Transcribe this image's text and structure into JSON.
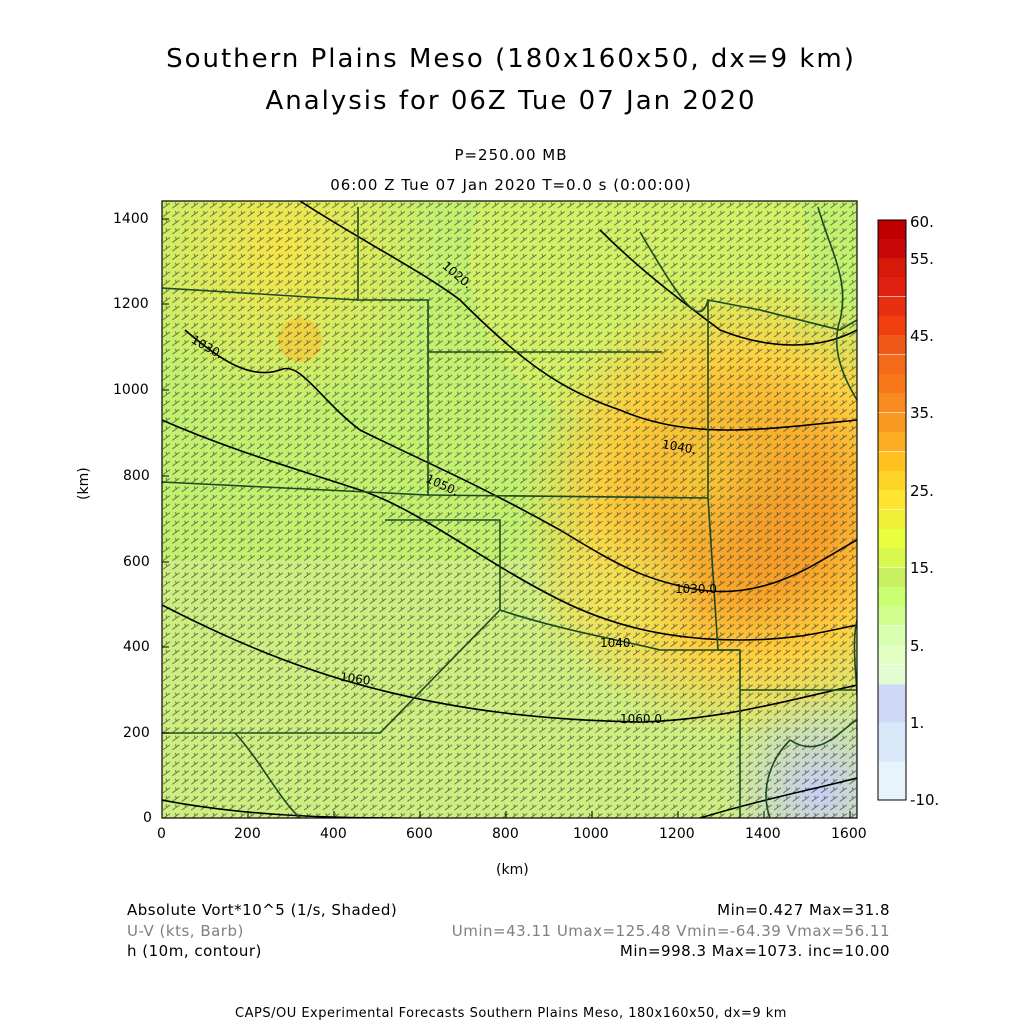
{
  "title": {
    "line1": "Southern Plains Meso (180x160x50, dx=9 km)",
    "line2": "Analysis for 06Z Tue 07 Jan 2020"
  },
  "header": {
    "level": "P=250.00 MB",
    "time": "06:00 Z Tue 07 Jan 2020    T=0.0 s (0:00:00)"
  },
  "axes": {
    "xlabel": "(km)",
    "ylabel": "(km)",
    "x_ticks": [
      "0",
      "200",
      "400",
      "600",
      "800",
      "1000",
      "1200",
      "1400",
      "1600"
    ],
    "y_ticks": [
      "0",
      "200",
      "400",
      "600",
      "800",
      "1000",
      "1200",
      "1400"
    ]
  },
  "colorbar": {
    "labels": [
      "60.",
      "55.",
      "45.",
      "35.",
      "25.",
      "15.",
      "5.",
      "1.",
      "-10."
    ],
    "colors": [
      "#c00000",
      "#d51a0a",
      "#e83010",
      "#f05a18",
      "#f88a20",
      "#ffc020",
      "#ffe830",
      "#e8ff40",
      "#c8ff70",
      "#d8ffb0",
      "#d0d8f8",
      "#d8e8f8",
      "#e8f4fc"
    ]
  },
  "contour_labels": [
    "1020.",
    "1030.",
    "1040.",
    "1050.",
    "1060.",
    "1060.0",
    "1030.0",
    "1040."
  ],
  "legend": {
    "field1": "Absolute Vort*10^5 (1/s, Shaded)",
    "field1_stats": "Min=0.427  Max=31.8",
    "field2": "U-V (kts, Barb)",
    "field2_stats": "Umin=43.11  Umax=125.48  Vmin=-64.39  Vmax=56.11",
    "field3": "h (10m, contour)",
    "field3_stats": "Min=998.3  Max=1073.  inc=10.00"
  },
  "footer": "CAPS/OU Experimental Forecasts   Southern Plains Meso, 180x160x50, dx=9 km",
  "chart_data": {
    "type": "heatmap",
    "x_range_km": [
      0,
      1600
    ],
    "y_range_km": [
      0,
      1400
    ],
    "field": "Absolute Vort*10^5",
    "min": 0.427,
    "max": 31.8,
    "contour_field": "h",
    "contour_min": 998.3,
    "contour_max": 1073,
    "contour_inc": 10
  }
}
